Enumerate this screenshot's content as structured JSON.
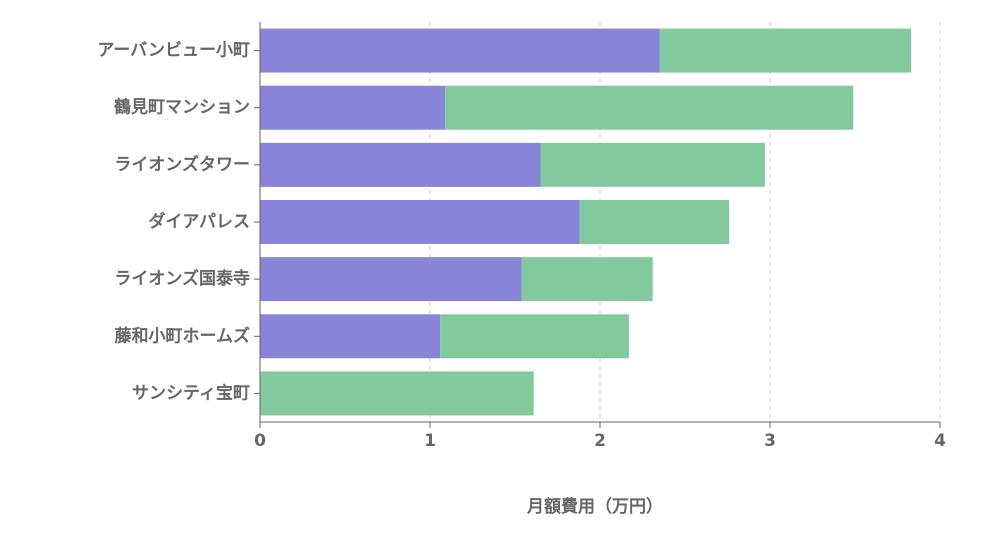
{
  "chart_data": {
    "type": "stacked-bar-horizontal",
    "categories": [
      "アーバンビュー小町",
      "鶴見町マンション",
      "ライオンズタワー",
      "ダイアパレス",
      "ライオンズ国泰寺",
      "藤和小町ホームズ",
      "サンシティ宝町"
    ],
    "series": [
      {
        "color": "#8884d8",
        "values": [
          2.35,
          1.09,
          1.65,
          1.88,
          1.54,
          1.06,
          0
        ]
      },
      {
        "color": "#82ca9d",
        "values": [
          1.48,
          2.4,
          1.32,
          0.88,
          0.77,
          1.11,
          1.61
        ]
      }
    ],
    "xlabel": "月額費用（万円）",
    "xlim": [
      0,
      4
    ],
    "xticks": [
      0,
      1,
      2,
      3,
      4
    ],
    "grid": true
  }
}
